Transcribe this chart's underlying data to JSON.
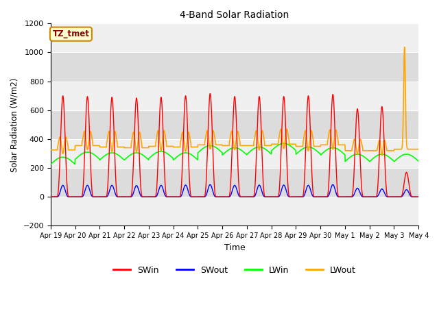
{
  "title": "4-Band Solar Radiation",
  "xlabel": "Time",
  "ylabel": "Solar Radiation (W/m2)",
  "ylim": [
    -200,
    1200
  ],
  "yticks": [
    -200,
    0,
    200,
    400,
    600,
    800,
    1000,
    1200
  ],
  "x_tick_labels": [
    "Apr 19",
    "Apr 20",
    "Apr 21",
    "Apr 22",
    "Apr 23",
    "Apr 24",
    "Apr 25",
    "Apr 26",
    "Apr 27",
    "Apr 28",
    "Apr 29",
    "Apr 30",
    "May 1",
    "May 2",
    "May 3",
    "May 4"
  ],
  "annotation_text": "TZ_tmet",
  "annotation_color": "#8b0000",
  "annotation_bg": "#ffffcc",
  "annotation_edge": "#cc8800",
  "plot_bg_light": "#f0f0f0",
  "plot_bg_dark": "#dcdcdc",
  "fig_bg": "#ffffff",
  "n_days": 15,
  "SWin_peaks": [
    700,
    695,
    690,
    685,
    690,
    700,
    715,
    695,
    695,
    695,
    700,
    710,
    610,
    625,
    170,
    0
  ],
  "SWout_peaks": [
    80,
    80,
    80,
    78,
    80,
    82,
    85,
    80,
    82,
    82,
    80,
    85,
    60,
    55,
    50,
    0
  ],
  "LWin_values": [
    225,
    260,
    255,
    255,
    265,
    255,
    305,
    290,
    295,
    320,
    295,
    290,
    245,
    245,
    245,
    245
  ],
  "LWout_base_values": [
    325,
    355,
    345,
    340,
    350,
    345,
    360,
    355,
    355,
    365,
    350,
    360,
    320,
    320,
    330,
    330
  ],
  "LWout_peaks": [
    415,
    455,
    455,
    450,
    460,
    450,
    460,
    455,
    460,
    470,
    460,
    465,
    400,
    395,
    1040,
    330
  ],
  "last_day_yellow_spike": 1040
}
